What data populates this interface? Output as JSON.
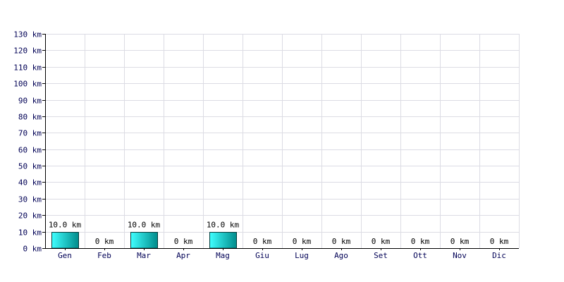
{
  "chart_data": {
    "type": "bar",
    "title": "",
    "xlabel": "",
    "ylabel": "",
    "unit": "km",
    "ylim": [
      0,
      130
    ],
    "ytick_step": 10,
    "ytick_labels": [
      "0 km",
      "10 km",
      "20 km",
      "30 km",
      "40 km",
      "50 km",
      "60 km",
      "70 km",
      "80 km",
      "90 km",
      "100 km",
      "110 km",
      "120 km",
      "130 km"
    ],
    "categories": [
      "Gen",
      "Feb",
      "Mar",
      "Apr",
      "Mag",
      "Giu",
      "Lug",
      "Ago",
      "Set",
      "Ott",
      "Nov",
      "Dic"
    ],
    "values": [
      10.0,
      0,
      10.0,
      0,
      10.0,
      0,
      0,
      0,
      0,
      0,
      0,
      0
    ],
    "value_labels": [
      "10.0 km",
      "0 km",
      "10.0 km",
      "0 km",
      "10.0 km",
      "0 km",
      "0 km",
      "0 km",
      "0 km",
      "0 km",
      "0 km",
      "0 km"
    ],
    "grid": true,
    "bar_color_light": "#40ffff",
    "bar_color_dark": "#008b8b",
    "tick_color": "#000055",
    "grid_color": "#dcdce4"
  }
}
